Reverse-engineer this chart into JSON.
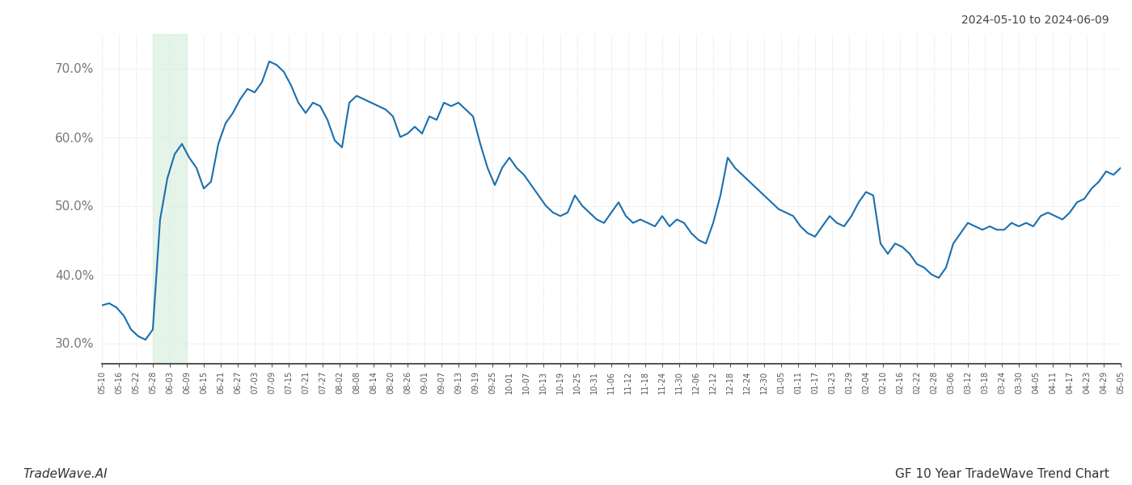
{
  "title_top_right": "2024-05-10 to 2024-06-09",
  "title_bottom_left": "TradeWave.AI",
  "title_bottom_right": "GF 10 Year TradeWave Trend Chart",
  "line_color": "#1a6faf",
  "line_width": 1.5,
  "highlight_color": "#d4edda",
  "highlight_alpha": 0.6,
  "background_color": "#ffffff",
  "grid_color": "#cccccc",
  "yticks": [
    30.0,
    40.0,
    50.0,
    60.0,
    70.0
  ],
  "ylim": [
    27,
    75
  ],
  "xtick_labels": [
    "05-10",
    "05-16",
    "05-22",
    "05-28",
    "06-03",
    "06-09",
    "06-15",
    "06-21",
    "06-27",
    "07-03",
    "07-09",
    "07-15",
    "07-21",
    "07-27",
    "08-02",
    "08-08",
    "08-14",
    "08-20",
    "08-26",
    "09-01",
    "09-07",
    "09-13",
    "09-19",
    "09-25",
    "10-01",
    "10-07",
    "10-13",
    "10-19",
    "10-25",
    "10-31",
    "11-06",
    "11-12",
    "11-18",
    "11-24",
    "11-30",
    "12-06",
    "12-12",
    "12-18",
    "12-24",
    "12-30",
    "01-05",
    "01-11",
    "01-17",
    "01-23",
    "01-29",
    "02-04",
    "02-10",
    "02-16",
    "02-22",
    "02-28",
    "03-06",
    "03-12",
    "03-18",
    "03-24",
    "03-30",
    "04-05",
    "04-11",
    "04-17",
    "04-23",
    "04-29",
    "05-05"
  ],
  "highlight_label_start": "05-28",
  "highlight_label_end": "06-09",
  "y_values": [
    35.5,
    35.8,
    35.2,
    34.0,
    32.0,
    31.0,
    30.5,
    32.0,
    48.0,
    54.0,
    57.5,
    59.0,
    57.0,
    55.5,
    52.5,
    53.5,
    59.0,
    62.0,
    63.5,
    65.5,
    67.0,
    66.5,
    68.0,
    71.0,
    70.5,
    69.5,
    67.5,
    65.0,
    63.5,
    65.0,
    64.5,
    62.5,
    59.5,
    58.5,
    65.0,
    66.0,
    65.5,
    65.0,
    64.5,
    64.0,
    63.0,
    60.0,
    60.5,
    61.5,
    60.5,
    63.0,
    62.5,
    65.0,
    64.5,
    65.0,
    64.0,
    63.0,
    59.0,
    55.5,
    53.0,
    55.5,
    57.0,
    55.5,
    54.5,
    53.0,
    51.5,
    50.0,
    49.0,
    48.5,
    49.0,
    51.5,
    50.0,
    49.0,
    48.0,
    47.5,
    49.0,
    50.5,
    48.5,
    47.5,
    48.0,
    47.5,
    47.0,
    48.5,
    47.0,
    48.0,
    47.5,
    46.0,
    45.0,
    44.5,
    47.5,
    51.5,
    57.0,
    55.5,
    54.5,
    53.5,
    52.5,
    51.5,
    50.5,
    49.5,
    49.0,
    48.5,
    47.0,
    46.0,
    45.5,
    47.0,
    48.5,
    47.5,
    47.0,
    48.5,
    50.5,
    52.0,
    51.5,
    44.5,
    43.0,
    44.5,
    44.0,
    43.0,
    41.5,
    41.0,
    40.0,
    39.5,
    41.0,
    44.5,
    46.0,
    47.5,
    47.0,
    46.5,
    47.0,
    46.5,
    46.5,
    47.5,
    47.0,
    47.5,
    47.0,
    48.5,
    49.0,
    48.5,
    48.0,
    49.0,
    50.5,
    51.0,
    52.5,
    53.5,
    55.0,
    54.5,
    55.5
  ]
}
